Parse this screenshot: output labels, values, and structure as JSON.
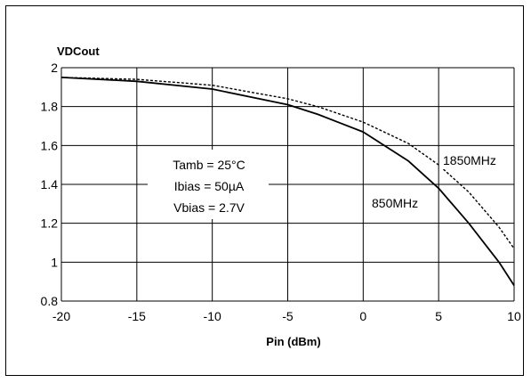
{
  "chart_data": {
    "type": "line",
    "title": "",
    "ylabel": "VDCout",
    "xlabel": "Pin (dBm)",
    "xlim": [
      -20,
      10
    ],
    "ylim": [
      0.8,
      2
    ],
    "xticks": [
      -20,
      -15,
      -10,
      -5,
      0,
      5,
      10
    ],
    "yticks": [
      0.8,
      1,
      1.2,
      1.4,
      1.6,
      1.8,
      2
    ],
    "ytick_labels": [
      "0.8",
      "1",
      "1.2",
      "1.4",
      "1.6",
      "1.8",
      "2"
    ],
    "grid": true,
    "series": [
      {
        "name": "850MHz",
        "style": "solid",
        "x": [
          -20,
          -15,
          -10,
          -5,
          -3,
          0,
          3,
          5,
          7,
          9,
          10
        ],
        "y": [
          1.95,
          1.93,
          1.89,
          1.81,
          1.76,
          1.67,
          1.52,
          1.38,
          1.2,
          1.0,
          0.88
        ]
      },
      {
        "name": "1850MHz",
        "style": "dashed",
        "x": [
          -20,
          -15,
          -10,
          -5,
          -3,
          0,
          3,
          5,
          7,
          9,
          10
        ],
        "y": [
          1.95,
          1.94,
          1.91,
          1.84,
          1.8,
          1.72,
          1.61,
          1.5,
          1.36,
          1.18,
          1.07
        ]
      }
    ],
    "annotations": [
      "Tamb = 25°C",
      "Ibias = 50µA",
      "Vbias = 2.7V"
    ]
  }
}
